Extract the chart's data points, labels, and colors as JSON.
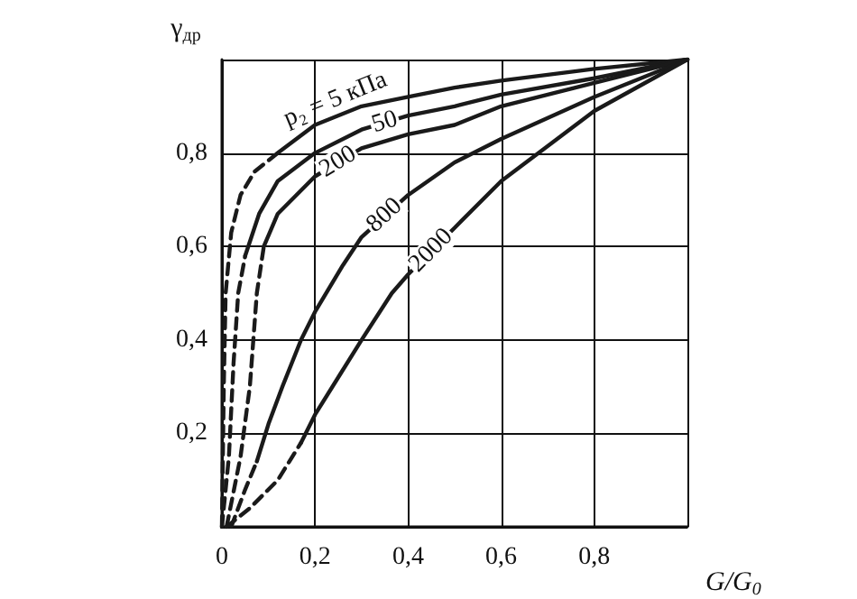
{
  "chart_data": {
    "type": "line",
    "xlabel": "G/G$_{0}$",
    "ylabel": "γ$_{др}$",
    "xlim": [
      0,
      1
    ],
    "ylim": [
      0,
      1
    ],
    "xticks": [
      {
        "value": 0,
        "label": "0"
      },
      {
        "value": 0.2,
        "label": "0,2"
      },
      {
        "value": 0.4,
        "label": "0,4"
      },
      {
        "value": 0.6,
        "label": "0,6"
      },
      {
        "value": 0.8,
        "label": "0,8"
      },
      {
        "value": 1,
        "label": null
      }
    ],
    "yticks": [
      {
        "value": 0,
        "label": null
      },
      {
        "value": 0.2,
        "label": "0,2"
      },
      {
        "value": 0.4,
        "label": "0,4"
      },
      {
        "value": 0.6,
        "label": "0,6"
      },
      {
        "value": 0.8,
        "label": "0,8"
      },
      {
        "value": 1,
        "label": null
      }
    ],
    "grid": true,
    "legend": false,
    "marker": "none",
    "series": [
      {
        "color": "#1a1a1a",
        "line_style": "dashed",
        "x": [
          0,
          0.004,
          0.008,
          0.02,
          0.04,
          0.07,
          0.12
        ],
        "values": [
          0,
          0.3,
          0.5,
          0.63,
          0.71,
          0.76,
          0.8
        ]
      },
      {
        "name": "p₂ = 5 кПа",
        "color": "#1a1a1a",
        "line_style": "solid",
        "x": [
          0.12,
          0.2,
          0.3,
          0.4,
          0.5,
          0.6,
          0.8,
          1
        ],
        "values": [
          0.8,
          0.86,
          0.9,
          0.92,
          0.94,
          0.955,
          0.98,
          1
        ]
      },
      {
        "color": "#1a1a1a",
        "line_style": "dashed",
        "x": [
          0,
          0.015,
          0.025,
          0.035,
          0.05
        ],
        "values": [
          0,
          0.15,
          0.35,
          0.5,
          0.58
        ]
      },
      {
        "name": "50",
        "color": "#1a1a1a",
        "line_style": "solid",
        "x": [
          0.05,
          0.08,
          0.12,
          0.2,
          0.3,
          0.4,
          0.5,
          0.6,
          0.8,
          1
        ],
        "values": [
          0.58,
          0.67,
          0.74,
          0.8,
          0.85,
          0.88,
          0.9,
          0.925,
          0.96,
          1
        ]
      },
      {
        "color": "#1a1a1a",
        "line_style": "dashed",
        "x": [
          0.01,
          0.04,
          0.06,
          0.075,
          0.09
        ],
        "values": [
          0,
          0.15,
          0.3,
          0.5,
          0.6
        ]
      },
      {
        "name": "200",
        "color": "#1a1a1a",
        "line_style": "solid",
        "x": [
          0.09,
          0.12,
          0.2,
          0.3,
          0.4,
          0.5,
          0.6,
          0.8,
          1
        ],
        "values": [
          0.6,
          0.67,
          0.75,
          0.81,
          0.84,
          0.86,
          0.9,
          0.95,
          1
        ]
      },
      {
        "color": "#1a1a1a",
        "line_style": "dashed",
        "x": [
          0.02,
          0.05,
          0.075
        ],
        "values": [
          0,
          0.08,
          0.14
        ]
      },
      {
        "name": "800",
        "color": "#1a1a1a",
        "line_style": "solid",
        "x": [
          0.075,
          0.1,
          0.13,
          0.17,
          0.2,
          0.26,
          0.3,
          0.4,
          0.5,
          0.6,
          0.8,
          1
        ],
        "values": [
          0.14,
          0.22,
          0.3,
          0.4,
          0.46,
          0.56,
          0.62,
          0.71,
          0.78,
          0.83,
          0.92,
          1
        ]
      },
      {
        "color": "#1a1a1a",
        "line_style": "dashed",
        "x": [
          0.01,
          0.06,
          0.12,
          0.17
        ],
        "values": [
          0,
          0.04,
          0.1,
          0.18
        ]
      },
      {
        "name": "2000",
        "color": "#1a1a1a",
        "line_style": "solid",
        "x": [
          0.17,
          0.2,
          0.25,
          0.3,
          0.365,
          0.4,
          0.5,
          0.6,
          0.8,
          1
        ],
        "values": [
          0.18,
          0.24,
          0.32,
          0.4,
          0.5,
          0.54,
          0.64,
          0.74,
          0.89,
          1
        ]
      }
    ]
  }
}
